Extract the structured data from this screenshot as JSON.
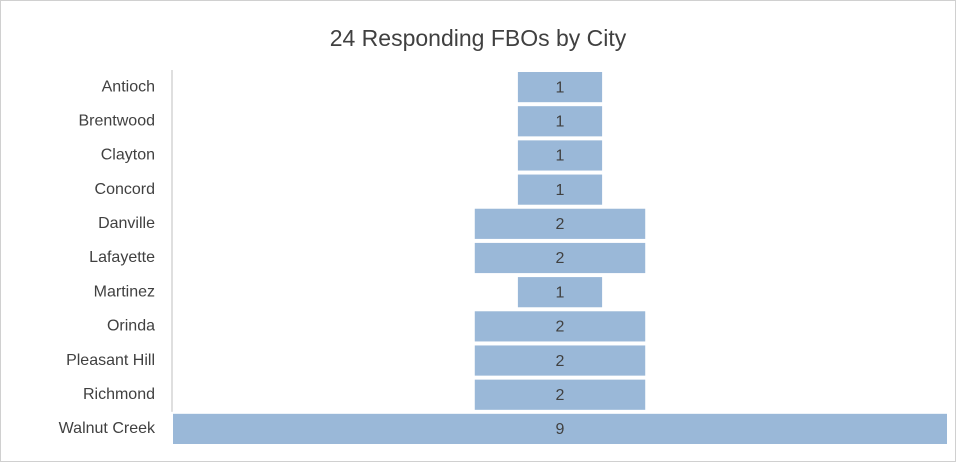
{
  "chart_data": {
    "type": "funnel",
    "title": "24 Responding FBOs by City",
    "categories": [
      "Antioch",
      "Brentwood",
      "Clayton",
      "Concord",
      "Danville",
      "Lafayette",
      "Martinez",
      "Orinda",
      "Pleasant Hill",
      "Richmond",
      "Walnut Creek"
    ],
    "values": [
      1,
      1,
      1,
      1,
      2,
      2,
      1,
      2,
      2,
      2,
      9
    ],
    "color": "#9ab8d8"
  }
}
